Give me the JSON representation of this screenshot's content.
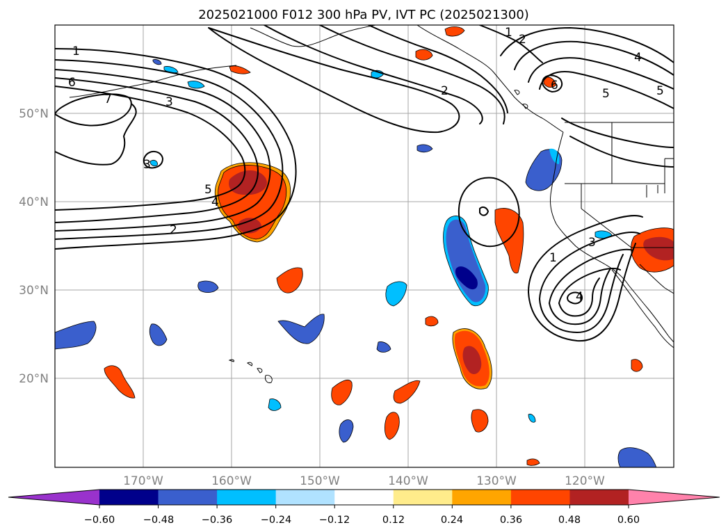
{
  "title": "2025021000 F012 300 hPa PV, IVT PC (2025021300)",
  "lat_labels": [
    "50°N",
    "40°N",
    "30°N",
    "20°N"
  ],
  "lon_labels": [
    "170°W",
    "160°W",
    "150°W",
    "140°W",
    "130°W",
    "120°W"
  ],
  "colorbar": {
    "ticks": [
      "−0.60",
      "−0.48",
      "−0.36",
      "−0.24",
      "−0.12",
      "0.12",
      "0.24",
      "0.36",
      "0.48",
      "0.60"
    ],
    "colors": [
      "#9932cc",
      "#00008b",
      "#3a5fcd",
      "#00bfff",
      "#b0e2ff",
      "#ffffff",
      "#ffec8b",
      "#ffa500",
      "#ff4500",
      "#b22222",
      "#ff82ab"
    ]
  },
  "contour_labels": [
    "1",
    "6",
    "7",
    "3",
    "5",
    "4",
    "2",
    "3",
    "2",
    "1",
    "2",
    "4",
    "5",
    "6",
    "5",
    "1",
    "3",
    "4"
  ],
  "colors": {
    "blue_dark": "#00008b",
    "blue_mid": "#3a5fcd",
    "blue_light": "#00bfff",
    "orange_red": "#ff4500",
    "firebrick": "#b22222",
    "orange": "#ffa500",
    "gold_light": "#ffec8b"
  }
}
